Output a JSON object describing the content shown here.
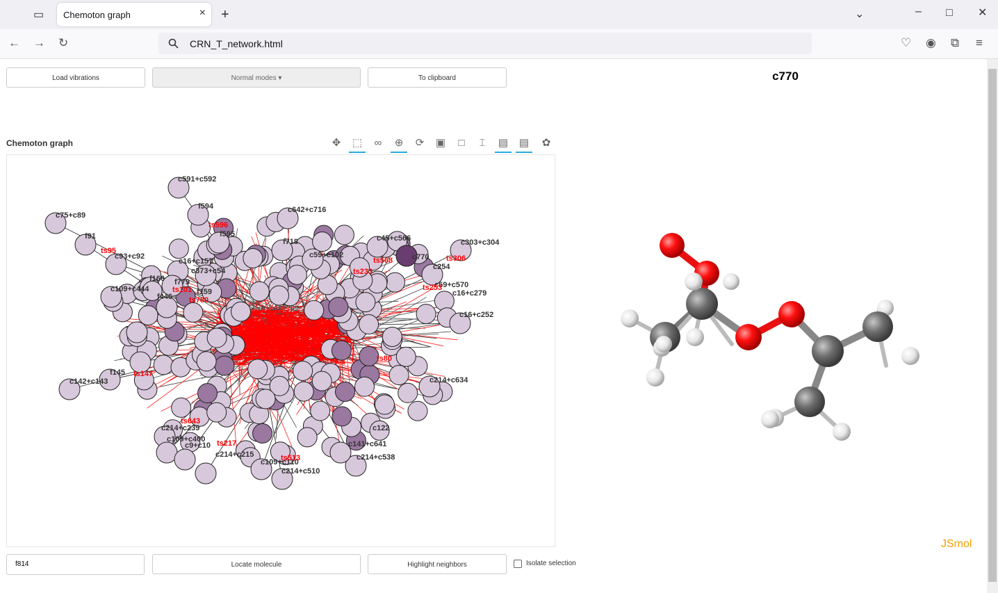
{
  "browser": {
    "tab_title": "Chemoton graph",
    "url": "CRN_T_network.html"
  },
  "controls": {
    "load_vibrations": "Load vibrations",
    "normal_modes": "Normal modes",
    "to_clipboard": "To clipboard",
    "graph_title": "Chemoton graph",
    "search_value": "f814",
    "locate_molecule": "Locate molecule",
    "highlight_neighbors": "Highlight neighbors",
    "isolate_selection": "Isolate selection"
  },
  "viewer": {
    "molecule_title": "c770",
    "brand": "JSmol"
  },
  "graph_labels": {
    "black": [
      "c591+c592",
      "f594",
      "c75+c89",
      "f91",
      "c642+c716",
      "f595",
      "c93+c92",
      "f718",
      "c45+c566",
      "c303+c304",
      "c16+c157",
      "c373+c54",
      "c59+c102",
      "c254",
      "f160",
      "c109+c444",
      "f159",
      "c59+c570",
      "c16+c279",
      "c16+c252",
      "c142+c143",
      "f145",
      "c214+c634",
      "c214+c239",
      "c109+c400",
      "c9+c10",
      "c214+c215",
      "c109+c110",
      "c214+c510",
      "c214+c538",
      "c141+c641",
      "c122",
      "f446",
      "f779",
      "c770"
    ],
    "red": [
      "ts596",
      "ts95",
      "ts306",
      "ts568",
      "ts233",
      "ts253",
      "ts101",
      "ts780",
      "ts147",
      "ts513",
      "ts217",
      "ts643",
      "ts80"
    ]
  },
  "colors": {
    "node_fill": "#d8c8dc",
    "node_dark": "#6a3d70",
    "red_label": "#ff0000",
    "oxygen": "#ff0d0d",
    "carbon": "#777777",
    "hydrogen": "#eeeeee",
    "jsmol_brand": "#f0a000"
  }
}
